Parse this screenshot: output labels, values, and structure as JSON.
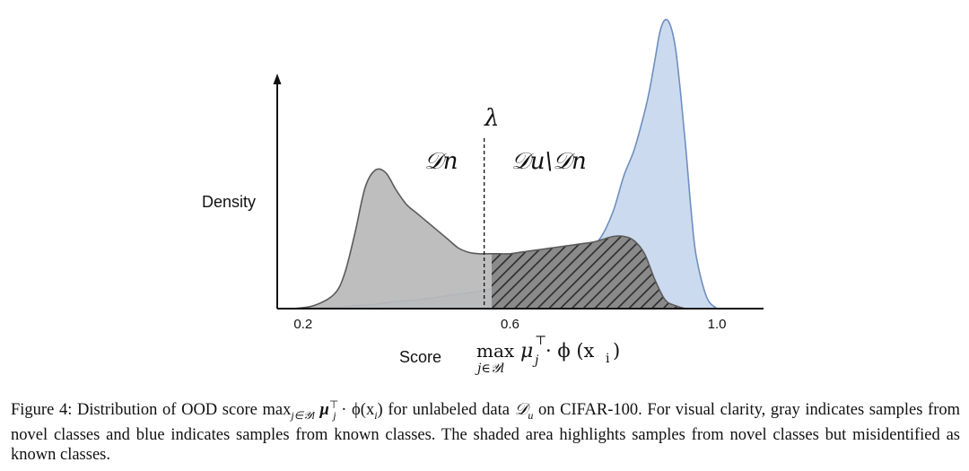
{
  "chart_data": {
    "type": "area",
    "xlabel": "Score",
    "ylabel": "Density",
    "x_ticks": [
      "0.2",
      "0.6",
      "1.0"
    ],
    "x_tick_values": [
      0.2,
      0.6,
      1.0
    ],
    "xlim": [
      0.15,
      1.09
    ],
    "ylim": [
      0,
      1.0
    ],
    "threshold": {
      "label": "λ",
      "x": 0.55
    },
    "region_labels": {
      "left": "𝒟n",
      "right": "𝒟u\\𝒟n"
    },
    "score_formula": {
      "op": "max",
      "sub": "j∈𝒴l",
      "mu": "μ",
      "mu_sub": "j",
      "mu_sup": "⊤",
      "rest": "· ϕ (x",
      "x_sub": "i",
      "close": ")"
    },
    "series": [
      {
        "color": "#5b5b5b",
        "fill": "#b8b8b8",
        "x": [
          0.18,
          0.22,
          0.26,
          0.28,
          0.3,
          0.32,
          0.34,
          0.36,
          0.38,
          0.4,
          0.42,
          0.44,
          0.46,
          0.48,
          0.5,
          0.52,
          0.54,
          0.56,
          0.58,
          0.6,
          0.62,
          0.64,
          0.66,
          0.68,
          0.7,
          0.72,
          0.74,
          0.76,
          0.78,
          0.8,
          0.82,
          0.84,
          0.86,
          0.88,
          0.9,
          0.92,
          0.94,
          0.96
        ],
        "y": [
          0.0,
          0.01,
          0.05,
          0.12,
          0.26,
          0.42,
          0.48,
          0.47,
          0.41,
          0.36,
          0.33,
          0.3,
          0.27,
          0.24,
          0.21,
          0.195,
          0.19,
          0.19,
          0.19,
          0.19,
          0.195,
          0.2,
          0.205,
          0.21,
          0.215,
          0.22,
          0.225,
          0.23,
          0.24,
          0.25,
          0.25,
          0.235,
          0.19,
          0.1,
          0.03,
          0.01,
          0.0,
          0.0
        ]
      },
      {
        "color": "#6f8fbf",
        "fill": "#c8d8ee",
        "x": [
          0.18,
          0.26,
          0.3,
          0.34,
          0.38,
          0.42,
          0.46,
          0.5,
          0.54,
          0.58,
          0.62,
          0.66,
          0.7,
          0.74,
          0.76,
          0.78,
          0.8,
          0.82,
          0.84,
          0.86,
          0.87,
          0.88,
          0.89,
          0.9,
          0.91,
          0.92,
          0.93,
          0.94,
          0.95,
          0.96,
          0.98,
          1.0
        ],
        "y": [
          0.0,
          0.005,
          0.01,
          0.015,
          0.025,
          0.03,
          0.04,
          0.05,
          0.06,
          0.075,
          0.09,
          0.11,
          0.13,
          0.17,
          0.21,
          0.26,
          0.34,
          0.46,
          0.55,
          0.68,
          0.76,
          0.86,
          0.96,
          1.0,
          0.98,
          0.9,
          0.74,
          0.55,
          0.34,
          0.18,
          0.04,
          0.0
        ]
      }
    ]
  },
  "caption": {
    "prefix": "Figure 4: Distribution of OOD score ",
    "formula_max": "max",
    "formula_max_sub": "j∈𝒴l",
    "formula_mu": " μ",
    "formula_mu_sub": "j",
    "formula_mu_sup": "⊤",
    "formula_rest": " · ϕ(x",
    "formula_x_sub": "i",
    "formula_close": ")",
    "middle": " for unlabeled data ",
    "du": "𝒟",
    "du_sub": "u",
    "suffix": " on CIFAR-100. For visual clarity, gray indicates samples from novel classes and blue indicates samples from known classes. The shaded area highlights samples from novel classes but misidentified as known classes."
  }
}
